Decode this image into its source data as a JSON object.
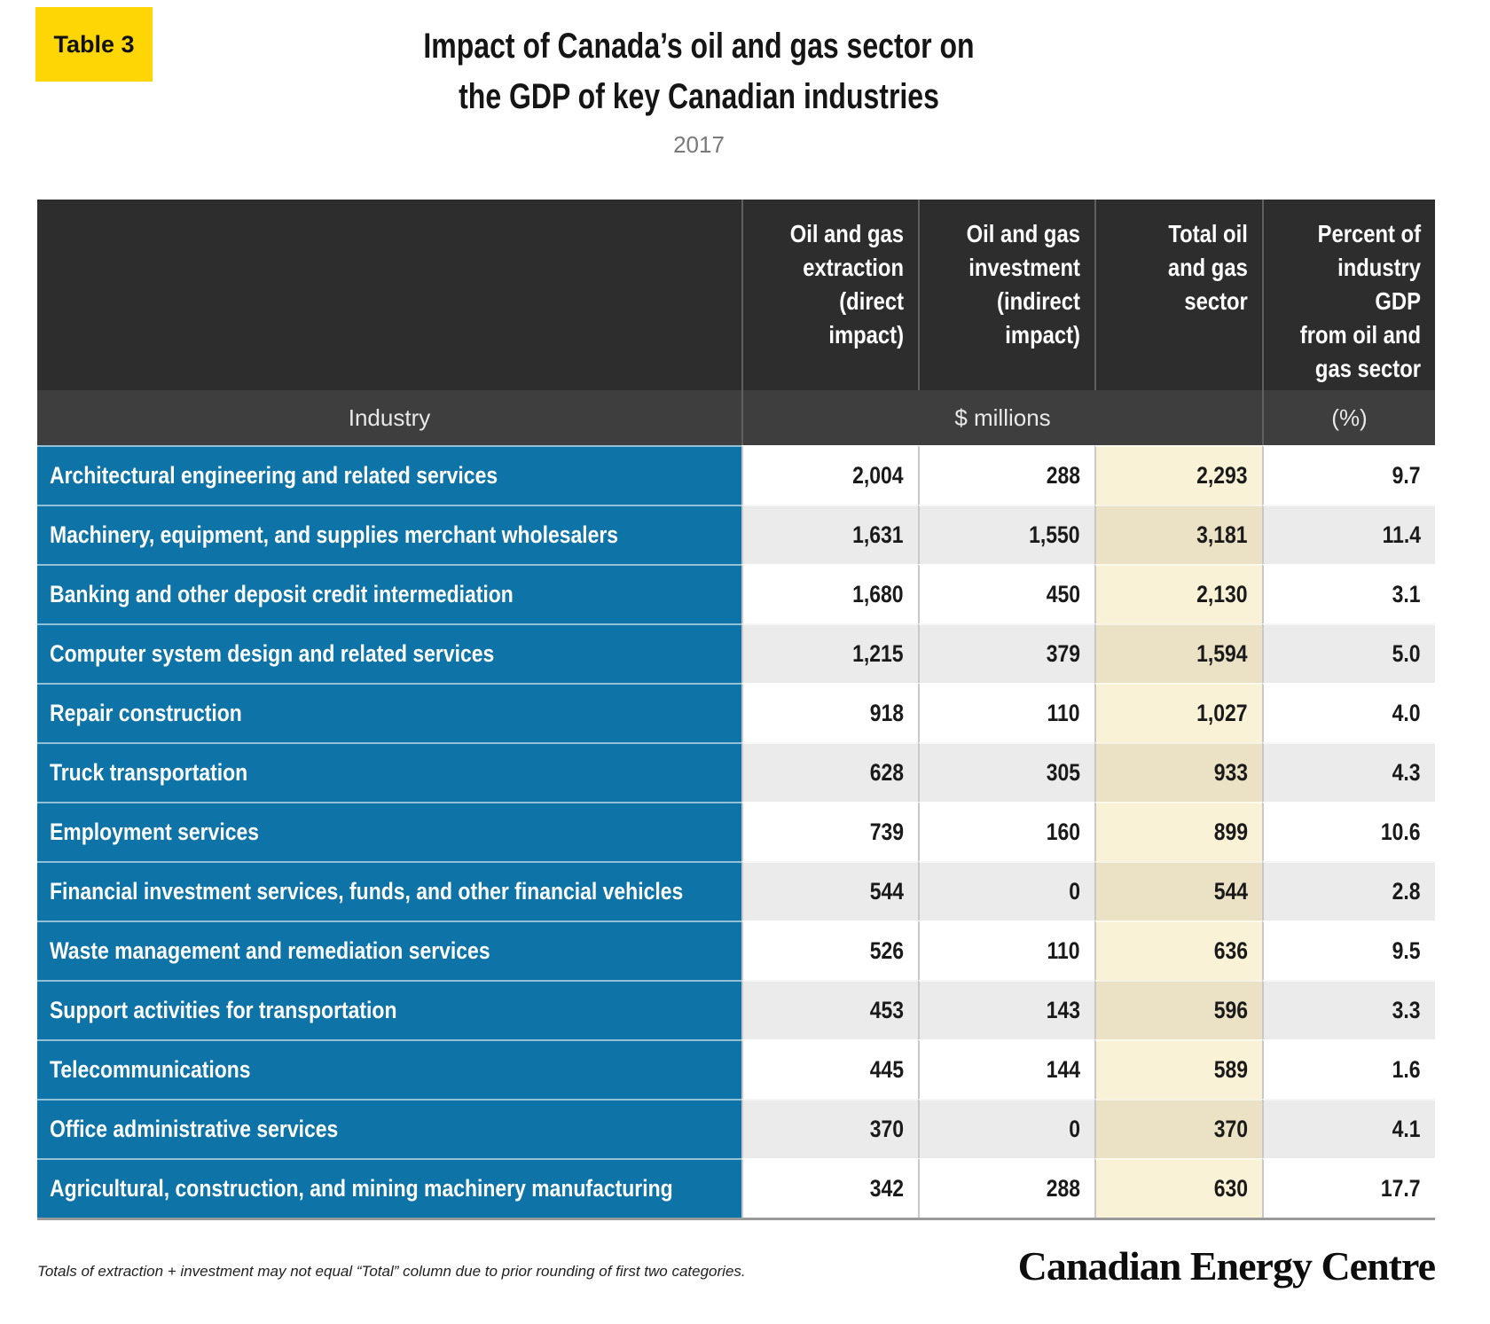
{
  "badge": {
    "label": "Table 3"
  },
  "header": {
    "title_line1": "Impact of Canada’s oil and gas sector on",
    "title_line2": "the GDP of key Canadian industries",
    "subtitle": "2017"
  },
  "table": {
    "col_headers": [
      "Oil and gas\nextraction\n(direct impact)",
      "Oil and gas\ninvestment\n(indirect\nimpact)",
      "Total oil\nand gas\nsector",
      "Percent of\nindustry GDP\nfrom oil and\ngas sector"
    ],
    "subheader": {
      "industry": "Industry",
      "millions": "$ millions",
      "percent": "(%)"
    },
    "rows": [
      {
        "name": "Architectural engineering and related services",
        "extraction": "2,004",
        "investment": "288",
        "total": "2,293",
        "percent": "9.7"
      },
      {
        "name": "Machinery, equipment, and supplies merchant wholesalers",
        "extraction": "1,631",
        "investment": "1,550",
        "total": "3,181",
        "percent": "11.4"
      },
      {
        "name": "Banking and other deposit credit intermediation",
        "extraction": "1,680",
        "investment": "450",
        "total": "2,130",
        "percent": "3.1"
      },
      {
        "name": "Computer system design and related services",
        "extraction": "1,215",
        "investment": "379",
        "total": "1,594",
        "percent": "5.0"
      },
      {
        "name": "Repair construction",
        "extraction": "918",
        "investment": "110",
        "total": "1,027",
        "percent": "4.0"
      },
      {
        "name": "Truck transportation",
        "extraction": "628",
        "investment": "305",
        "total": "933",
        "percent": "4.3"
      },
      {
        "name": "Employment services",
        "extraction": "739",
        "investment": "160",
        "total": "899",
        "percent": "10.6"
      },
      {
        "name": "Financial investment services, funds, and other financial vehicles",
        "extraction": "544",
        "investment": "0",
        "total": "544",
        "percent": "2.8"
      },
      {
        "name": "Waste management and remediation services",
        "extraction": "526",
        "investment": "110",
        "total": "636",
        "percent": "9.5"
      },
      {
        "name": "Support activities for transportation",
        "extraction": "453",
        "investment": "143",
        "total": "596",
        "percent": "3.3"
      },
      {
        "name": "Telecommunications",
        "extraction": "445",
        "investment": "144",
        "total": "589",
        "percent": "1.6"
      },
      {
        "name": "Office administrative services",
        "extraction": "370",
        "investment": "0",
        "total": "370",
        "percent": "4.1"
      },
      {
        "name": "Agricultural, construction, and mining machinery manufacturing",
        "extraction": "342",
        "investment": "288",
        "total": "630",
        "percent": "17.7"
      }
    ]
  },
  "footer": {
    "note": "Totals of extraction + investment may not equal “Total” column due to prior rounding of first two categories.",
    "logo": "Canadian Energy Centre"
  },
  "colors": {
    "badge_yellow": "#FFD605",
    "header_dark": "#2D2D2D",
    "subheader_dark": "#3E3E3E",
    "industry_blue": "#0E73A6",
    "total_cream_light": "#F9F2D7",
    "total_cream_dark": "#EBE2C6",
    "row_grey": "#EBEBEB"
  },
  "chart_data": {
    "type": "table",
    "title": "Impact of Canada’s oil and gas sector on the GDP of key Canadian industries",
    "subtitle": "2017",
    "columns": [
      "Industry",
      "Oil and gas extraction (direct impact), $ millions",
      "Oil and gas investment (indirect impact), $ millions",
      "Total oil and gas sector, $ millions",
      "Percent of industry GDP from oil and gas sector (%)"
    ],
    "rows": [
      [
        "Architectural engineering and related services",
        2004,
        288,
        2293,
        9.7
      ],
      [
        "Machinery, equipment, and supplies merchant wholesalers",
        1631,
        1550,
        3181,
        11.4
      ],
      [
        "Banking and other deposit credit intermediation",
        1680,
        450,
        2130,
        3.1
      ],
      [
        "Computer system design and related services",
        1215,
        379,
        1594,
        5.0
      ],
      [
        "Repair construction",
        918,
        110,
        1027,
        4.0
      ],
      [
        "Truck transportation",
        628,
        305,
        933,
        4.3
      ],
      [
        "Employment services",
        739,
        160,
        899,
        10.6
      ],
      [
        "Financial investment services, funds, and other financial vehicles",
        544,
        0,
        544,
        2.8
      ],
      [
        "Waste management and remediation services",
        526,
        110,
        636,
        9.5
      ],
      [
        "Support activities for transportation",
        453,
        143,
        596,
        3.3
      ],
      [
        "Telecommunications",
        445,
        144,
        589,
        1.6
      ],
      [
        "Office administrative services",
        370,
        0,
        370,
        4.1
      ],
      [
        "Agricultural, construction, and mining machinery manufacturing",
        342,
        288,
        630,
        17.7
      ]
    ]
  }
}
